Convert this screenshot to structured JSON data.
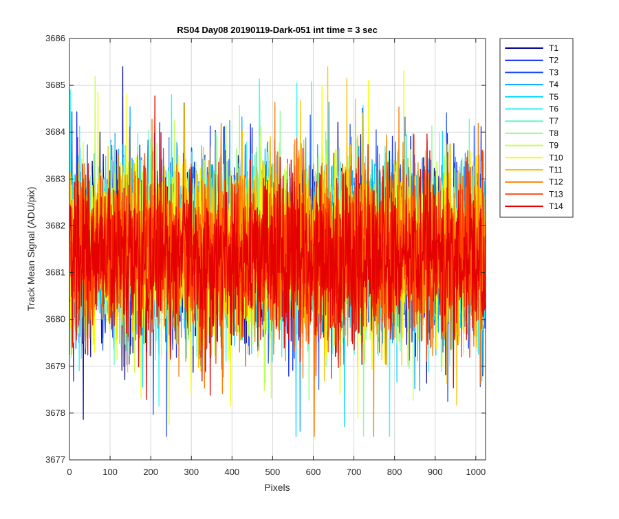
{
  "chart_data": {
    "type": "line",
    "title": "RS04 Day08 20190119-Dark-051 int time = 3 sec",
    "xlabel": "Pixels",
    "ylabel": "Track Mean Signal (ADU/pix)",
    "xlim": [
      0,
      1024
    ],
    "ylim": [
      3677,
      3686
    ],
    "x_ticks": [
      0,
      100,
      200,
      300,
      400,
      500,
      600,
      700,
      800,
      900,
      1000
    ],
    "y_ticks": [
      3677,
      3678,
      3679,
      3680,
      3681,
      3682,
      3683,
      3684,
      3685,
      3686
    ],
    "grid": true,
    "legend_location": "outside-right-top",
    "x_range": [
      0,
      1024
    ],
    "samples_per_series": 1024,
    "series_summary": {
      "typical_mean": 3681.5,
      "approx_min": 3677.5,
      "approx_max": 3685.4
    },
    "series": [
      {
        "name": "T1",
        "color": "#00008f",
        "seed": 11,
        "mean": 3681.45,
        "sd": 0.95,
        "skew": 0.0
      },
      {
        "name": "T2",
        "color": "#001fff",
        "seed": 22,
        "mean": 3681.55,
        "sd": 0.92,
        "skew": 0.05
      },
      {
        "name": "T3",
        "color": "#1a4dff",
        "seed": 33,
        "mean": 3681.5,
        "sd": 0.96,
        "skew": -0.05
      },
      {
        "name": "T4",
        "color": "#00a6ff",
        "seed": 44,
        "mean": 3681.6,
        "sd": 0.9,
        "skew": 0.08
      },
      {
        "name": "T5",
        "color": "#00d8ff",
        "seed": 55,
        "mean": 3681.55,
        "sd": 0.87,
        "skew": 0.03
      },
      {
        "name": "T6",
        "color": "#22f5f5",
        "seed": 66,
        "mean": 3681.45,
        "sd": 0.88,
        "skew": -0.02
      },
      {
        "name": "T7",
        "color": "#62f7c8",
        "seed": 77,
        "mean": 3681.5,
        "sd": 0.86,
        "skew": 0.0
      },
      {
        "name": "T8",
        "color": "#8cff8c",
        "seed": 88,
        "mean": 3681.55,
        "sd": 0.84,
        "skew": 0.02
      },
      {
        "name": "T9",
        "color": "#c8ff46",
        "seed": 99,
        "mean": 3681.5,
        "sd": 0.86,
        "skew": -0.04
      },
      {
        "name": "T10",
        "color": "#f5ff00",
        "seed": 111,
        "mean": 3681.45,
        "sd": 0.88,
        "skew": 0.04
      },
      {
        "name": "T11",
        "color": "#ffc200",
        "seed": 122,
        "mean": 3681.55,
        "sd": 0.9,
        "skew": 0.0
      },
      {
        "name": "T12",
        "color": "#ff7a00",
        "seed": 133,
        "mean": 3681.4,
        "sd": 0.92,
        "skew": -0.03
      },
      {
        "name": "T13",
        "color": "#ff3f00",
        "seed": 144,
        "mean": 3681.35,
        "sd": 0.9,
        "skew": 0.03
      },
      {
        "name": "T14",
        "color": "#e30000",
        "seed": 155,
        "mean": 3681.3,
        "sd": 0.88,
        "skew": 0.0
      }
    ]
  }
}
